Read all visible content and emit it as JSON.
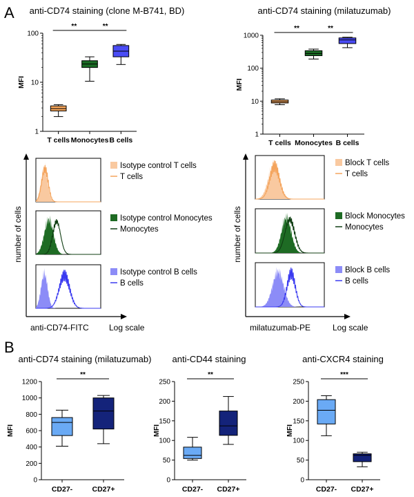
{
  "panels": {
    "a_label": "A",
    "b_label": "B"
  },
  "chart_data": [
    {
      "type": "box",
      "title": "anti-CD74 staining (clone M-B741, BD)",
      "ylabel": "MFI",
      "yscale": "log",
      "ylim": [
        1,
        100
      ],
      "yticks": [
        1,
        10,
        100
      ],
      "categories": [
        "T cells",
        "Monocytes",
        "B cells"
      ],
      "boxes": [
        {
          "min": 2.0,
          "q1": 2.6,
          "median": 2.9,
          "q3": 3.3,
          "max": 3.5,
          "color": "#f5a55a"
        },
        {
          "min": 10.5,
          "q1": 20,
          "median": 23.5,
          "q3": 27.5,
          "max": 33,
          "color": "#1b6b25"
        },
        {
          "min": 23,
          "q1": 33,
          "median": 43,
          "q3": 56,
          "max": 59,
          "color": "#4a4cf5"
        }
      ],
      "significance": [
        {
          "from": 0,
          "to": 1,
          "label": "**"
        },
        {
          "from": 1,
          "to": 2,
          "label": "**"
        }
      ]
    },
    {
      "type": "box",
      "title": "anti-CD74 staining (milatuzumab)",
      "ylabel": "MFI",
      "yscale": "log",
      "ylim": [
        1,
        1000
      ],
      "yticks": [
        1,
        10,
        100,
        1000
      ],
      "categories": [
        "T cells",
        "Monocytes",
        "B cells"
      ],
      "boxes": [
        {
          "min": 7.8,
          "q1": 8.8,
          "median": 9.6,
          "q3": 10.8,
          "max": 11.8,
          "color": "#f5a55a"
        },
        {
          "min": 190,
          "q1": 240,
          "median": 280,
          "q3": 340,
          "max": 380,
          "color": "#1b6b25"
        },
        {
          "min": 420,
          "q1": 560,
          "median": 720,
          "q3": 830,
          "max": 870,
          "color": "#4a4cf5"
        }
      ],
      "significance": [
        {
          "from": 0,
          "to": 1,
          "label": "**"
        },
        {
          "from": 1,
          "to": 2,
          "label": "**"
        }
      ]
    },
    {
      "type": "histogram",
      "ylabel": "number of cells",
      "xlabel": "anti-CD74-FITC",
      "xscale_label": "Log scale",
      "rows": [
        {
          "fill_label": "Isotype control T cells",
          "line_label": "T cells",
          "fill_color": "#f9c9a0",
          "line_color": "#f4a45c",
          "fill_center": 0.13,
          "fill_width": 0.05,
          "line_center": 0.14,
          "line_width": 0.05
        },
        {
          "fill_label": "Isotype control Monocytes",
          "line_label": "Monocytes",
          "fill_color": "#1e6b24",
          "line_color": "#0f3d12",
          "fill_center": 0.2,
          "fill_width": 0.07,
          "line_center": 0.32,
          "line_width": 0.06
        },
        {
          "fill_label": "Isotype control B cells",
          "line_label": "B cells",
          "fill_color": "#8c8cf7",
          "line_color": "#3a3af0",
          "fill_center": 0.13,
          "fill_width": 0.05,
          "line_center": 0.44,
          "line_width": 0.08
        }
      ]
    },
    {
      "type": "histogram",
      "ylabel": "number of cells",
      "xlabel": "milatuzumab-PE",
      "xscale_label": "Log scale",
      "rows": [
        {
          "fill_label": "Block T cells",
          "line_label": "T cells",
          "fill_color": "#f9c9a0",
          "line_color": "#f4a45c",
          "fill_center": 0.27,
          "fill_width": 0.08,
          "line_center": 0.28,
          "line_width": 0.07
        },
        {
          "fill_label": "Block Monocytes",
          "line_label": "Monocytes",
          "fill_color": "#1e6b24",
          "line_color": "#0f3d12",
          "fill_center": 0.45,
          "fill_width": 0.07,
          "line_center": 0.5,
          "line_width": 0.07
        },
        {
          "fill_label": "Block B cells",
          "line_label": "B cells",
          "fill_color": "#8c8cf7",
          "line_color": "#3a3af0",
          "fill_center": 0.33,
          "fill_width": 0.08,
          "line_center": 0.52,
          "line_width": 0.06
        }
      ]
    },
    {
      "type": "box",
      "title": "anti-CD74 staining (milatuzumab)",
      "ylabel": "MFI",
      "yscale": "linear",
      "ylim": [
        0,
        1200
      ],
      "yticks": [
        0,
        200,
        400,
        600,
        800,
        1000,
        1200
      ],
      "categories": [
        "CD27-",
        "CD27+"
      ],
      "boxes": [
        {
          "min": 410,
          "q1": 540,
          "median": 700,
          "q3": 760,
          "max": 850,
          "color": "#6aaaf5"
        },
        {
          "min": 440,
          "q1": 620,
          "median": 840,
          "q3": 1000,
          "max": 1030,
          "color": "#14237a"
        }
      ],
      "significance": [
        {
          "from": 0,
          "to": 1,
          "label": "**"
        }
      ]
    },
    {
      "type": "box",
      "title": "anti-CD44 staining",
      "ylabel": "MFI",
      "yscale": "linear",
      "ylim": [
        0,
        250
      ],
      "yticks": [
        0,
        50,
        100,
        150,
        200,
        250
      ],
      "categories": [
        "CD27-",
        "CD27+"
      ],
      "boxes": [
        {
          "min": 50,
          "q1": 54,
          "median": 62,
          "q3": 83,
          "max": 108,
          "color": "#6aaaf5"
        },
        {
          "min": 90,
          "q1": 113,
          "median": 137,
          "q3": 175,
          "max": 212,
          "color": "#14237a"
        }
      ],
      "significance": [
        {
          "from": 0,
          "to": 1,
          "label": "**"
        }
      ]
    },
    {
      "type": "box",
      "title": "anti-CXCR4 staining",
      "ylabel": "MFI",
      "yscale": "linear",
      "ylim": [
        0,
        250
      ],
      "yticks": [
        0,
        50,
        100,
        150,
        200,
        250
      ],
      "categories": [
        "CD27-",
        "CD27+"
      ],
      "boxes": [
        {
          "min": 112,
          "q1": 142,
          "median": 177,
          "q3": 204,
          "max": 214,
          "color": "#6aaaf5"
        },
        {
          "min": 33,
          "q1": 46,
          "median": 62,
          "q3": 66,
          "max": 70,
          "color": "#14237a"
        }
      ],
      "significance": [
        {
          "from": 0,
          "to": 1,
          "label": "***"
        }
      ]
    }
  ]
}
